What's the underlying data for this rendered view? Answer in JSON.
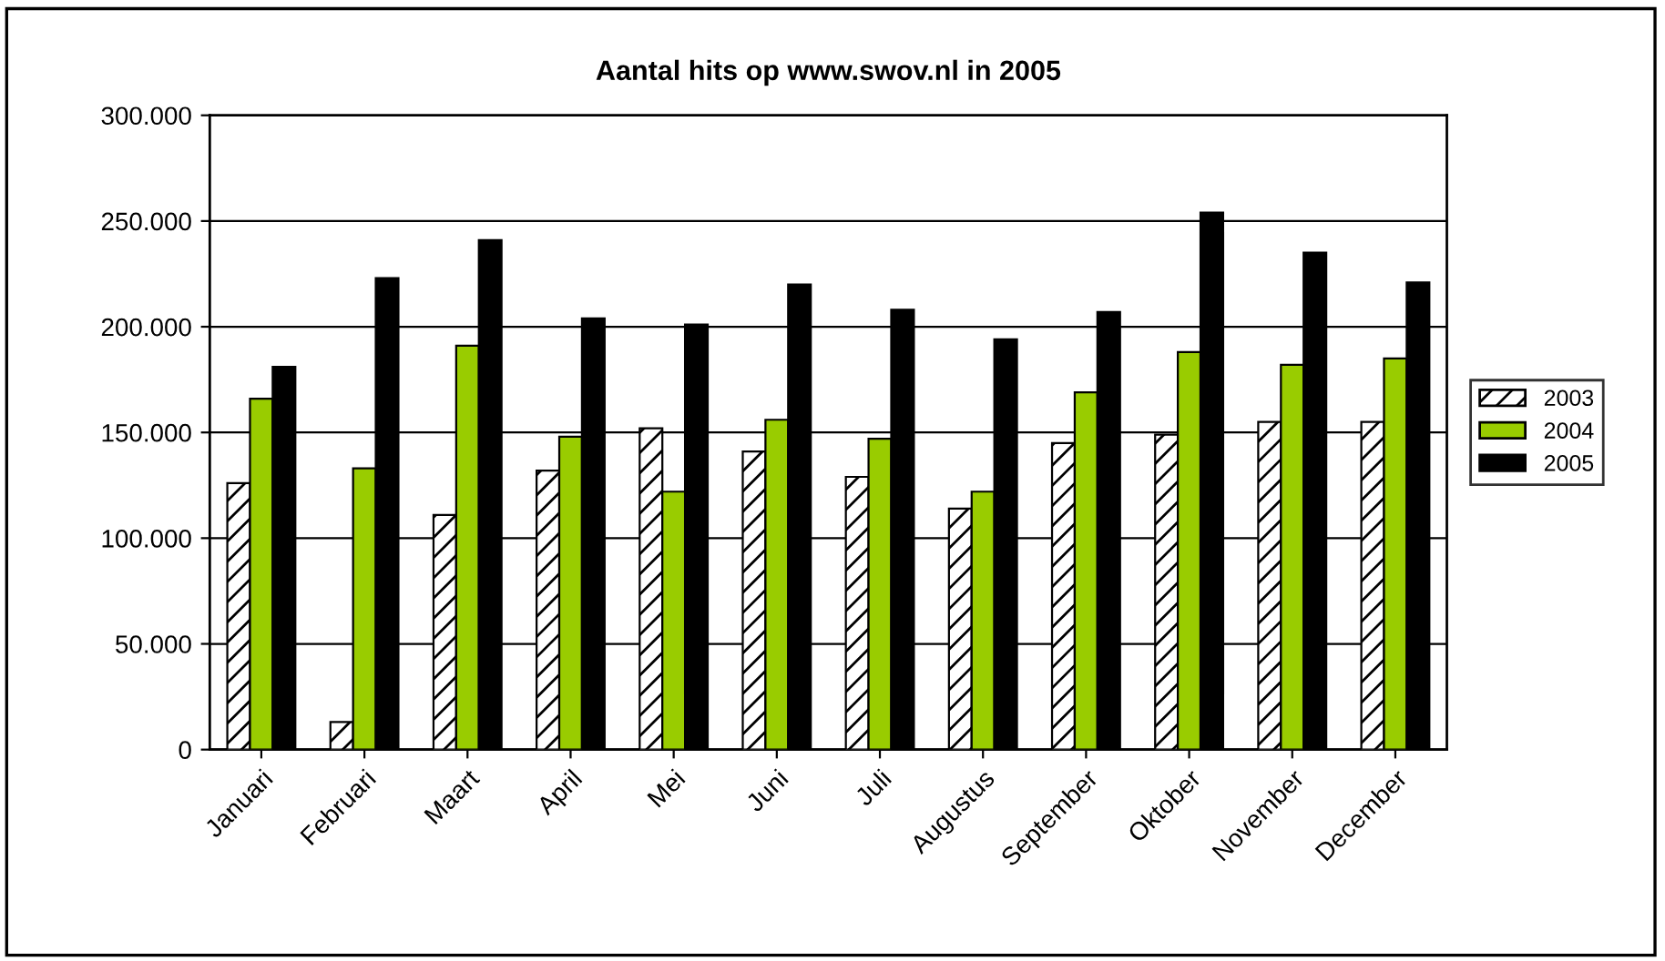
{
  "chart_data": {
    "type": "bar",
    "title": "Aantal hits op www.swov.nl in 2005",
    "categories": [
      "Januari",
      "Februari",
      "Maart",
      "April",
      "Mei",
      "Juni",
      "Juli",
      "Augustus",
      "September",
      "Oktober",
      "November",
      "December"
    ],
    "series": [
      {
        "name": "2003",
        "color": "#ffffff",
        "values": [
          126000,
          13000,
          111000,
          132000,
          152000,
          141000,
          129000,
          114000,
          145000,
          149000,
          155000,
          155000
        ]
      },
      {
        "name": "2004",
        "color": "#99cc00",
        "values": [
          166000,
          133000,
          191000,
          148000,
          122000,
          156000,
          147000,
          122000,
          169000,
          188000,
          182000,
          185000
        ]
      },
      {
        "name": "2005",
        "color": "#000000",
        "values": [
          181000,
          223000,
          241000,
          204000,
          201000,
          220000,
          208000,
          194000,
          207000,
          254000,
          235000,
          221000
        ]
      }
    ],
    "ylim": [
      0,
      300000
    ],
    "yticks": [
      0,
      {
        "value": 50000,
        "label": "50.000"
      },
      {
        "value": 100000,
        "label": "100.000"
      },
      {
        "value": 150000,
        "label": "150.000"
      },
      {
        "value": 200000,
        "label": "200.000"
      },
      {
        "value": 250000,
        "label": "250.000"
      },
      {
        "value": 300000,
        "label": "300.000"
      }
    ],
    "grid": "y",
    "legend": "right"
  }
}
